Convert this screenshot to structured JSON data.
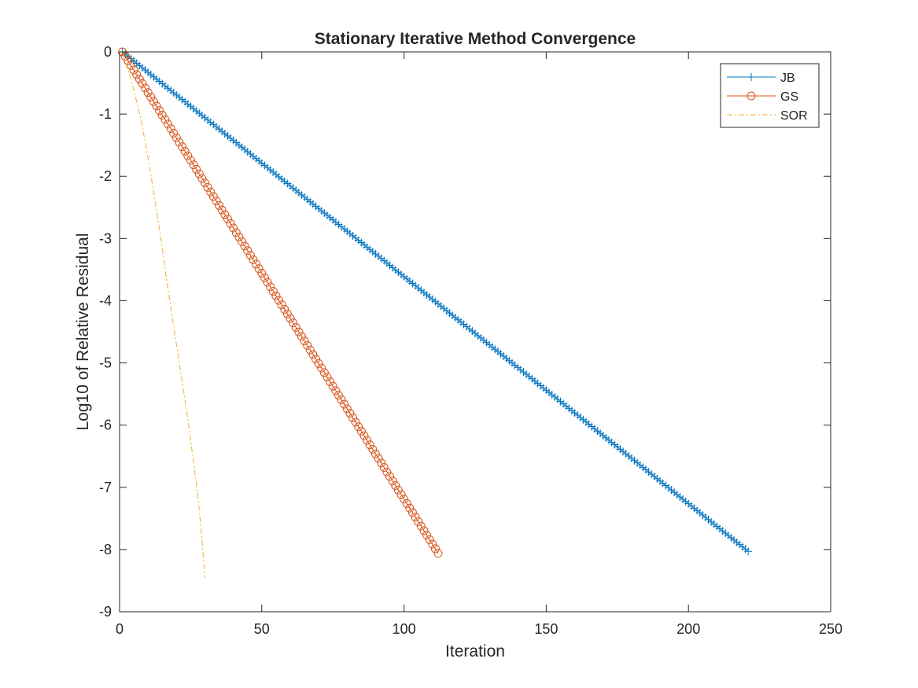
{
  "chart_data": {
    "type": "line",
    "title": "Stationary Iterative Method Convergence",
    "xlabel": "Iteration",
    "ylabel": "Log10 of Relative Residual",
    "xlim": [
      0,
      250
    ],
    "ylim": [
      -9,
      0
    ],
    "xticks": [
      0,
      50,
      100,
      150,
      200,
      250
    ],
    "yticks": [
      0,
      -1,
      -2,
      -3,
      -4,
      -5,
      -6,
      -7,
      -8,
      -9
    ],
    "grid": false,
    "box": true,
    "legend_position": "top-right",
    "series": [
      {
        "name": "JB",
        "color": "#0072BD",
        "marker": "plus",
        "line_style": "solid",
        "x_start": 1,
        "x_end": 221,
        "y_start": 0,
        "y_end": -8.03
      },
      {
        "name": "GS",
        "color": "#D95319",
        "marker": "circle",
        "line_style": "solid",
        "x_start": 1,
        "x_end": 112,
        "y_start": 0,
        "y_end": -8.06
      },
      {
        "name": "SOR",
        "color": "#EDB120",
        "marker": "none",
        "line_style": "dash-dot",
        "x": [
          1,
          2,
          3,
          4,
          5,
          6,
          7,
          8,
          9,
          10,
          11,
          12,
          13,
          14,
          15,
          16,
          17,
          18,
          19,
          20,
          21,
          22,
          23,
          24,
          25,
          26,
          27,
          28,
          29,
          30
        ],
        "y": [
          0,
          -0.15,
          -0.3,
          -0.45,
          -0.62,
          -0.8,
          -0.98,
          -1.2,
          -1.45,
          -1.7,
          -1.98,
          -2.25,
          -2.55,
          -2.85,
          -3.15,
          -3.5,
          -3.8,
          -4.1,
          -4.4,
          -4.7,
          -5.0,
          -5.3,
          -5.6,
          -5.9,
          -6.25,
          -6.6,
          -6.95,
          -7.35,
          -7.85,
          -8.45
        ]
      }
    ]
  }
}
